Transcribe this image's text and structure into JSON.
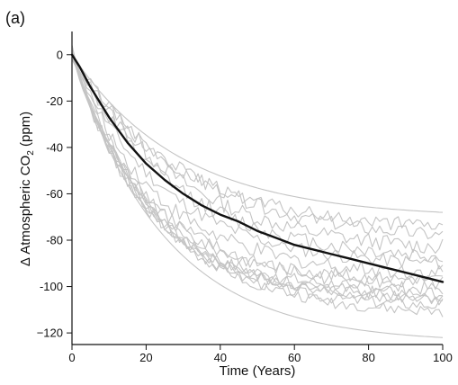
{
  "panel_label": "(a)",
  "chart_data": {
    "type": "line",
    "title": "",
    "xlabel": "Time (Years)",
    "ylabel": {
      "prefix": "Δ Atmospheric CO",
      "subscript": "2",
      "suffix": " (ppm)"
    },
    "xlim": [
      0,
      100
    ],
    "ylim": [
      -125,
      10
    ],
    "x_ticks": [
      0,
      20,
      40,
      60,
      80,
      100
    ],
    "y_ticks": [
      0,
      -20,
      -40,
      -60,
      -80,
      -100,
      -120
    ],
    "y_tick_labels": [
      "0",
      "-20",
      "-40",
      "-60",
      "-80",
      "-100",
      "−120"
    ],
    "grid": false,
    "legend": "none",
    "ensemble_color": "#c4c4c4",
    "mean_color": "#111111",
    "ensemble": [
      {
        "final": -122,
        "k": 0.04,
        "noise": 0.0,
        "seed": 1
      },
      {
        "final": -111,
        "k": 0.042,
        "noise": 2.5,
        "seed": 2
      },
      {
        "final": -108,
        "k": 0.046,
        "noise": 2.5,
        "seed": 3
      },
      {
        "final": -106,
        "k": 0.044,
        "noise": 2.0,
        "seed": 4
      },
      {
        "final": -104,
        "k": 0.048,
        "noise": 3.0,
        "seed": 5
      },
      {
        "final": -103,
        "k": 0.05,
        "noise": 2.5,
        "seed": 6
      },
      {
        "final": -101,
        "k": 0.052,
        "noise": 3.0,
        "seed": 7
      },
      {
        "final": -99,
        "k": 0.046,
        "noise": 3.5,
        "seed": 8
      },
      {
        "final": -97,
        "k": 0.05,
        "noise": 3.0,
        "seed": 9
      },
      {
        "final": -94,
        "k": 0.044,
        "noise": 3.5,
        "seed": 10
      },
      {
        "final": -90,
        "k": 0.04,
        "noise": 3.0,
        "seed": 11
      },
      {
        "final": -87,
        "k": 0.036,
        "noise": 3.5,
        "seed": 12
      },
      {
        "final": -83,
        "k": 0.034,
        "noise": 3.5,
        "seed": 13
      },
      {
        "final": -78,
        "k": 0.032,
        "noise": 3.0,
        "seed": 14
      },
      {
        "final": -74,
        "k": 0.036,
        "noise": 3.0,
        "seed": 15
      },
      {
        "final": -68,
        "k": 0.034,
        "noise": 0.0,
        "seed": 16
      }
    ],
    "mean": {
      "x": [
        0,
        2,
        5,
        10,
        15,
        20,
        25,
        30,
        35,
        40,
        45,
        50,
        55,
        60,
        65,
        70,
        75,
        80,
        85,
        90,
        95,
        100
      ],
      "y": [
        0,
        -5,
        -14,
        -27,
        -38,
        -47,
        -54,
        -60,
        -65,
        -69,
        -72,
        -76,
        -79,
        -82,
        -84,
        -86,
        -88,
        -90,
        -92,
        -94,
        -96,
        -98
      ]
    }
  }
}
